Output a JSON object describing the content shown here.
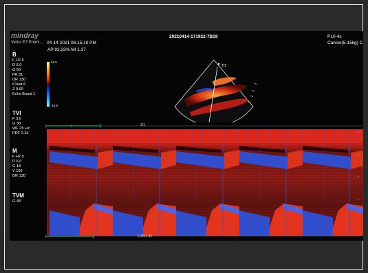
{
  "header": {
    "logo": "mindray",
    "device": "Vetus E7 Premi...",
    "datetime": "04-14-2021   06:15:10 PM",
    "study_id": "20210414-171922-7B19",
    "probe": "P10-4s",
    "patient": "Canine(5-15kg) C",
    "ap_mi": "AP 93.33%  MI 1.37"
  },
  "sections": {
    "b": {
      "title": "B",
      "params": [
        "F H7.5",
        "D 6.0",
        "G 50",
        "FR 31",
        "DR 130",
        "iClear 6",
        "Z 0.90",
        "Echo Boost 1"
      ]
    },
    "tvi": {
      "title": "TVI",
      "params": [
        "F 3.0",
        "G 38",
        "WF 25 Hz",
        "PRF 2.2k"
      ]
    },
    "m": {
      "title": "M",
      "params": [
        "F H7.5",
        "D 6.0",
        "G 18",
        "V 100",
        "DR 130"
      ]
    },
    "tvm": {
      "title": "TVM",
      "params": [
        "G 48"
      ]
    }
  },
  "colorbar": {
    "top_label": "15.5",
    "bottom_label": "-15.5"
  },
  "sector_label": "T/3",
  "scale_top_label": "1/1",
  "scale_bottom_label": "3.45/3.45",
  "colors": {
    "tissue_red": "#d8261a",
    "flow_blue": "#2a54e0",
    "accent_green": "#2ea36a"
  }
}
